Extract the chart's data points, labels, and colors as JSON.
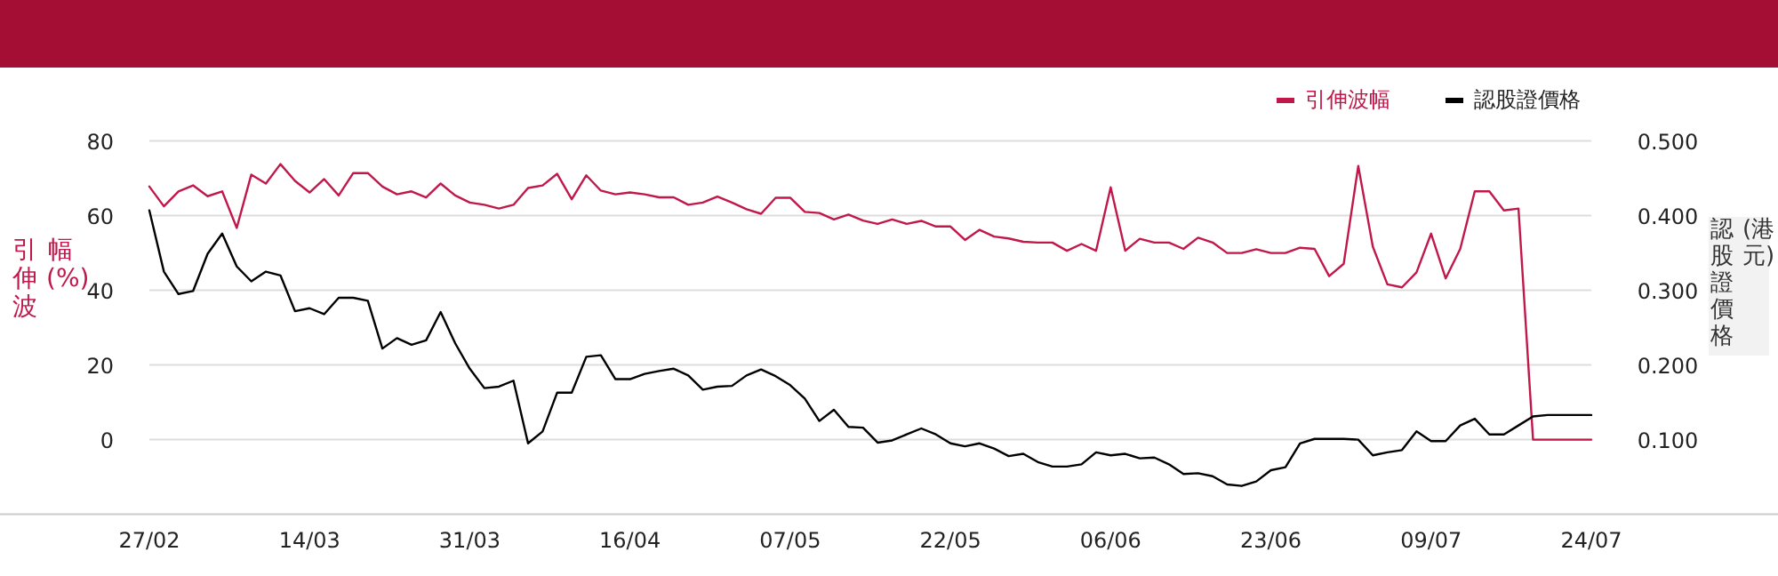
{
  "chart_data": {
    "type": "line",
    "categories": [
      "27/02",
      null,
      null,
      null,
      null,
      null,
      null,
      null,
      null,
      null,
      null,
      "14/03",
      null,
      null,
      null,
      null,
      null,
      null,
      null,
      null,
      null,
      null,
      "31/03",
      null,
      null,
      null,
      null,
      null,
      null,
      null,
      null,
      null,
      null,
      "16/04",
      null,
      null,
      null,
      null,
      null,
      null,
      null,
      null,
      null,
      null,
      "07/05",
      null,
      null,
      null,
      null,
      null,
      null,
      null,
      null,
      null,
      null,
      "22/05",
      null,
      null,
      null,
      null,
      null,
      null,
      null,
      null,
      null,
      null,
      "06/06",
      null,
      null,
      null,
      null,
      null,
      null,
      null,
      null,
      null,
      null,
      "23/06",
      null,
      null,
      null,
      null,
      null,
      null,
      null,
      null,
      null,
      null,
      "09/07",
      null,
      null,
      null,
      null,
      null,
      null,
      null,
      null,
      null,
      null,
      "24/07"
    ],
    "series": [
      {
        "name": "引伸波幅",
        "color": "#c0184a",
        "values": [
          67.8,
          62.5,
          66.5,
          68.1,
          65.2,
          66.5,
          56.7,
          71.0,
          68.6,
          73.8,
          69.3,
          66.2,
          69.8,
          65.4,
          71.4,
          71.4,
          67.8,
          65.7,
          66.5,
          64.9,
          68.6,
          65.4,
          63.5,
          62.9,
          61.9,
          62.9,
          67.4,
          68.1,
          71.2,
          64.4,
          70.8,
          66.7,
          65.7,
          66.2,
          65.7,
          64.9,
          64.9,
          62.9,
          63.5,
          65.1,
          63.5,
          61.7,
          60.5,
          64.8,
          64.8,
          61.0,
          60.7,
          59.0,
          60.3,
          58.7,
          57.8,
          59.0,
          57.8,
          58.6,
          57.1,
          57.1,
          53.5,
          56.2,
          54.4,
          53.9,
          53.0,
          52.8,
          52.8,
          50.6,
          52.4,
          50.6,
          67.6,
          50.6,
          53.8,
          52.8,
          52.8,
          51.1,
          54.1,
          52.8,
          50.0,
          50.0,
          51.0,
          50.0,
          50.0,
          51.4,
          51.1,
          43.8,
          47.1,
          73.3,
          51.7,
          41.6,
          40.8,
          44.8,
          55.2,
          43.2,
          51.1,
          66.5,
          66.5,
          61.4,
          61.9,
          0,
          0,
          0,
          0,
          0
        ]
      },
      {
        "name": "認股證價格",
        "color": "#000000",
        "axis": "y2",
        "values": [
          0.407,
          0.325,
          0.295,
          0.299,
          0.349,
          0.376,
          0.332,
          0.312,
          0.325,
          0.32,
          0.272,
          0.276,
          0.268,
          0.29,
          0.29,
          0.286,
          0.222,
          0.236,
          0.227,
          0.233,
          0.271,
          0.229,
          0.195,
          0.169,
          0.171,
          0.179,
          0.095,
          0.111,
          0.163,
          0.163,
          0.211,
          0.213,
          0.181,
          0.181,
          0.188,
          0.192,
          0.195,
          0.186,
          0.167,
          0.171,
          0.172,
          0.186,
          0.194,
          0.185,
          0.173,
          0.155,
          0.125,
          0.14,
          0.117,
          0.116,
          0.096,
          0.099,
          0.107,
          0.115,
          0.107,
          0.095,
          0.091,
          0.095,
          0.088,
          0.078,
          0.081,
          0.07,
          0.064,
          0.064,
          0.067,
          0.083,
          0.079,
          0.081,
          0.075,
          0.076,
          0.067,
          0.054,
          0.055,
          0.051,
          0.04,
          0.038,
          0.044,
          0.059,
          0.063,
          0.095,
          0.101,
          0.101,
          0.101,
          0.1,
          0.079,
          0.083,
          0.086,
          0.111,
          0.098,
          0.098,
          0.119,
          0.128,
          0.107,
          0.107,
          0.119,
          0.131,
          0.133,
          0.133,
          0.133,
          0.133
        ]
      }
    ],
    "ylabel": "引伸波幅(%)",
    "y2label": "認股證價格(港元)",
    "ylim": [
      -20,
      80
    ],
    "yticks": [
      0,
      20,
      40,
      60,
      80
    ],
    "y2lim": [
      0,
      0.5
    ],
    "y2ticks": [
      {
        "value": 0.1,
        "label": "0.100"
      },
      {
        "value": 0.2,
        "label": "0.200"
      },
      {
        "value": 0.3,
        "label": "0.300"
      },
      {
        "value": 0.4,
        "label": "0.400"
      },
      {
        "value": 0.5,
        "label": "0.500"
      }
    ],
    "grid": "y",
    "legend": "top right"
  }
}
